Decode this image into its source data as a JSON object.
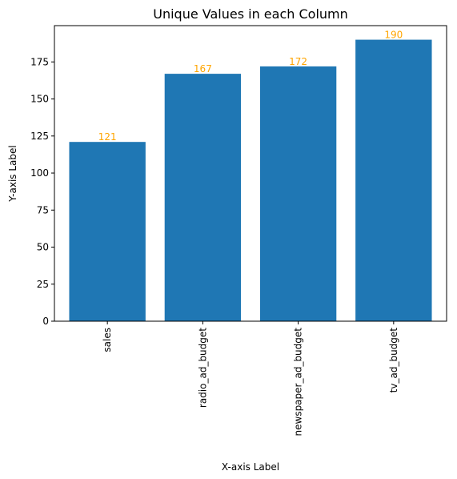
{
  "chart_data": {
    "type": "bar",
    "title": "Unique Values in each Column",
    "xlabel": "X-axis Label",
    "ylabel": "Y-axis Label",
    "categories": [
      "sales",
      "radio_ad_budget",
      "newspaper_ad_budget",
      "tv_ad_budget"
    ],
    "values": [
      121,
      167,
      172,
      190
    ],
    "data_labels": [
      "121",
      "167",
      "172",
      "190"
    ],
    "ylim": [
      0,
      199.5
    ],
    "yticks": [
      0,
      25,
      50,
      75,
      100,
      125,
      150,
      175
    ],
    "bar_color": "#1f77b4",
    "label_color": "#ffa500",
    "grid": false,
    "legend": "none"
  }
}
